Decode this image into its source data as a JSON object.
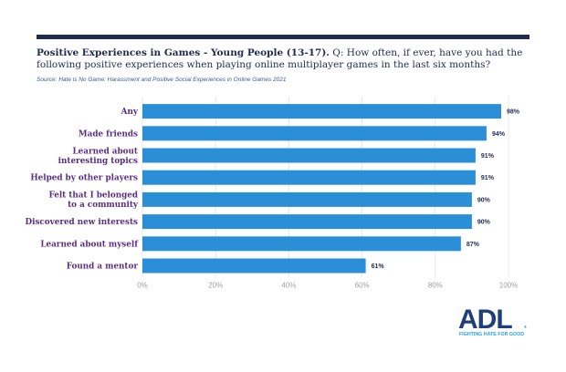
{
  "header": {
    "title_bold": "Positive Experiences in Games - Young People (13-17).",
    "title_rest": " Q: How often, if ever, have you had the following positive experiences when playing online multiplayer games in the last six months?",
    "source": "Source: Hate is No Game: Harassment and Positive Social Experiences in Online Games 2021"
  },
  "logo": {
    "text": "ADL",
    "registered": "®",
    "tagline": "FIGHTING HATE FOR GOOD"
  },
  "colors": {
    "bar": "#2a8fd6",
    "category_text": "#5a2d82",
    "rule": "#1f2b52",
    "grid": "#e3e3e3"
  },
  "chart_data": {
    "type": "bar",
    "orientation": "horizontal",
    "title": "Positive Experiences in Games - Young People (13-17)",
    "categories": [
      [
        "Any"
      ],
      [
        "Made friends"
      ],
      [
        "Learned about",
        "interesting topics"
      ],
      [
        "Helped by other players"
      ],
      [
        "Felt that I belonged",
        "to a community"
      ],
      [
        "Discovered new interests"
      ],
      [
        "Learned about myself"
      ],
      [
        "Found a mentor"
      ]
    ],
    "values": [
      98,
      94,
      91,
      91,
      90,
      90,
      87,
      61
    ],
    "value_labels": [
      "98%",
      "94%",
      "91%",
      "91%",
      "90%",
      "90%",
      "87%",
      "61%"
    ],
    "xlim": [
      0,
      100
    ],
    "xticks": [
      0,
      20,
      40,
      60,
      80,
      100
    ],
    "xtick_labels": [
      "0%",
      "20%",
      "40%",
      "60%",
      "80%",
      "100%"
    ],
    "xlabel": "",
    "ylabel": "",
    "grid": true
  }
}
